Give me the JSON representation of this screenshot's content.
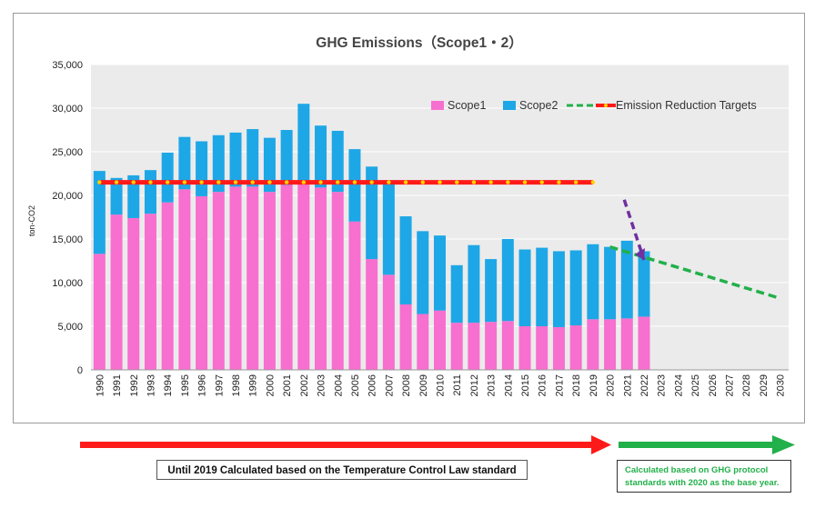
{
  "chart_data": {
    "type": "bar",
    "title": "GHG Emissions（Scope1・2）",
    "ylabel": "ton-CO2",
    "xlabel": "",
    "ylim": [
      0,
      35000
    ],
    "yticks": [
      "0",
      "5,000",
      "10,000",
      "15,000",
      "20,000",
      "25,000",
      "30,000",
      "35,000"
    ],
    "grid": true,
    "legend_position": "top-right",
    "categories": [
      "1990",
      "1991",
      "1992",
      "1993",
      "1994",
      "1995",
      "1996",
      "1997",
      "1998",
      "1999",
      "2000",
      "2001",
      "2002",
      "2003",
      "2004",
      "2005",
      "2006",
      "2007",
      "2008",
      "2009",
      "2010",
      "2011",
      "2012",
      "2013",
      "2014",
      "2015",
      "2016",
      "2017",
      "2018",
      "2019",
      "2020",
      "2021",
      "2022",
      "2023",
      "2024",
      "2025",
      "2026",
      "2027",
      "2028",
      "2029",
      "2030"
    ],
    "series": [
      {
        "name": "Scope1",
        "color": "#f76fcf",
        "stacked": true,
        "values": [
          13300,
          17800,
          17400,
          17900,
          19200,
          20700,
          19900,
          20400,
          21000,
          21000,
          20400,
          21200,
          21600,
          20900,
          20400,
          17000,
          12700,
          10900,
          7500,
          6400,
          6800,
          5400,
          5400,
          5500,
          5600,
          5000,
          5000,
          4900,
          5100,
          5800,
          5800,
          5900,
          6100,
          null,
          null,
          null,
          null,
          null,
          null,
          null,
          null
        ]
      },
      {
        "name": "Scope2",
        "color": "#1ea7e6",
        "stacked": true,
        "values": [
          9500,
          4200,
          4900,
          5000,
          5700,
          6000,
          6300,
          6500,
          6200,
          6600,
          6200,
          6300,
          8900,
          7100,
          7000,
          8300,
          10600,
          10400,
          10100,
          9500,
          8600,
          6600,
          8900,
          7200,
          9400,
          8800,
          9000,
          8700,
          8600,
          8600,
          8300,
          8900,
          7500,
          null,
          null,
          null,
          null,
          null,
          null,
          null,
          null
        ]
      }
    ],
    "lines": [
      {
        "name": "",
        "style": "dashed",
        "color": "#22b04a",
        "x": [
          "2020",
          "2030"
        ],
        "y": [
          14100,
          8200
        ]
      },
      {
        "name": "Emission Reduction Targets",
        "style": "dotted",
        "color": "#ff1a1a",
        "marker_color": "#ffd400",
        "x": [
          "1990",
          "2019"
        ],
        "y": [
          21500,
          21500
        ]
      }
    ],
    "annotations": [
      {
        "type": "arrow",
        "style": "dashed",
        "color": "#7030a0",
        "from": [
          "2021",
          19500
        ],
        "to": [
          "2022",
          12600
        ]
      }
    ]
  },
  "captions": {
    "left": "Until 2019 Calculated based on the Temperature Control Law standard",
    "right": "Calculated based on GHG protocol standards with 2020 as the base year."
  },
  "colors": {
    "plot_background": "#ebebeb",
    "left_period_arrow": "#ff1a1a",
    "right_period_arrow": "#22b04a"
  }
}
